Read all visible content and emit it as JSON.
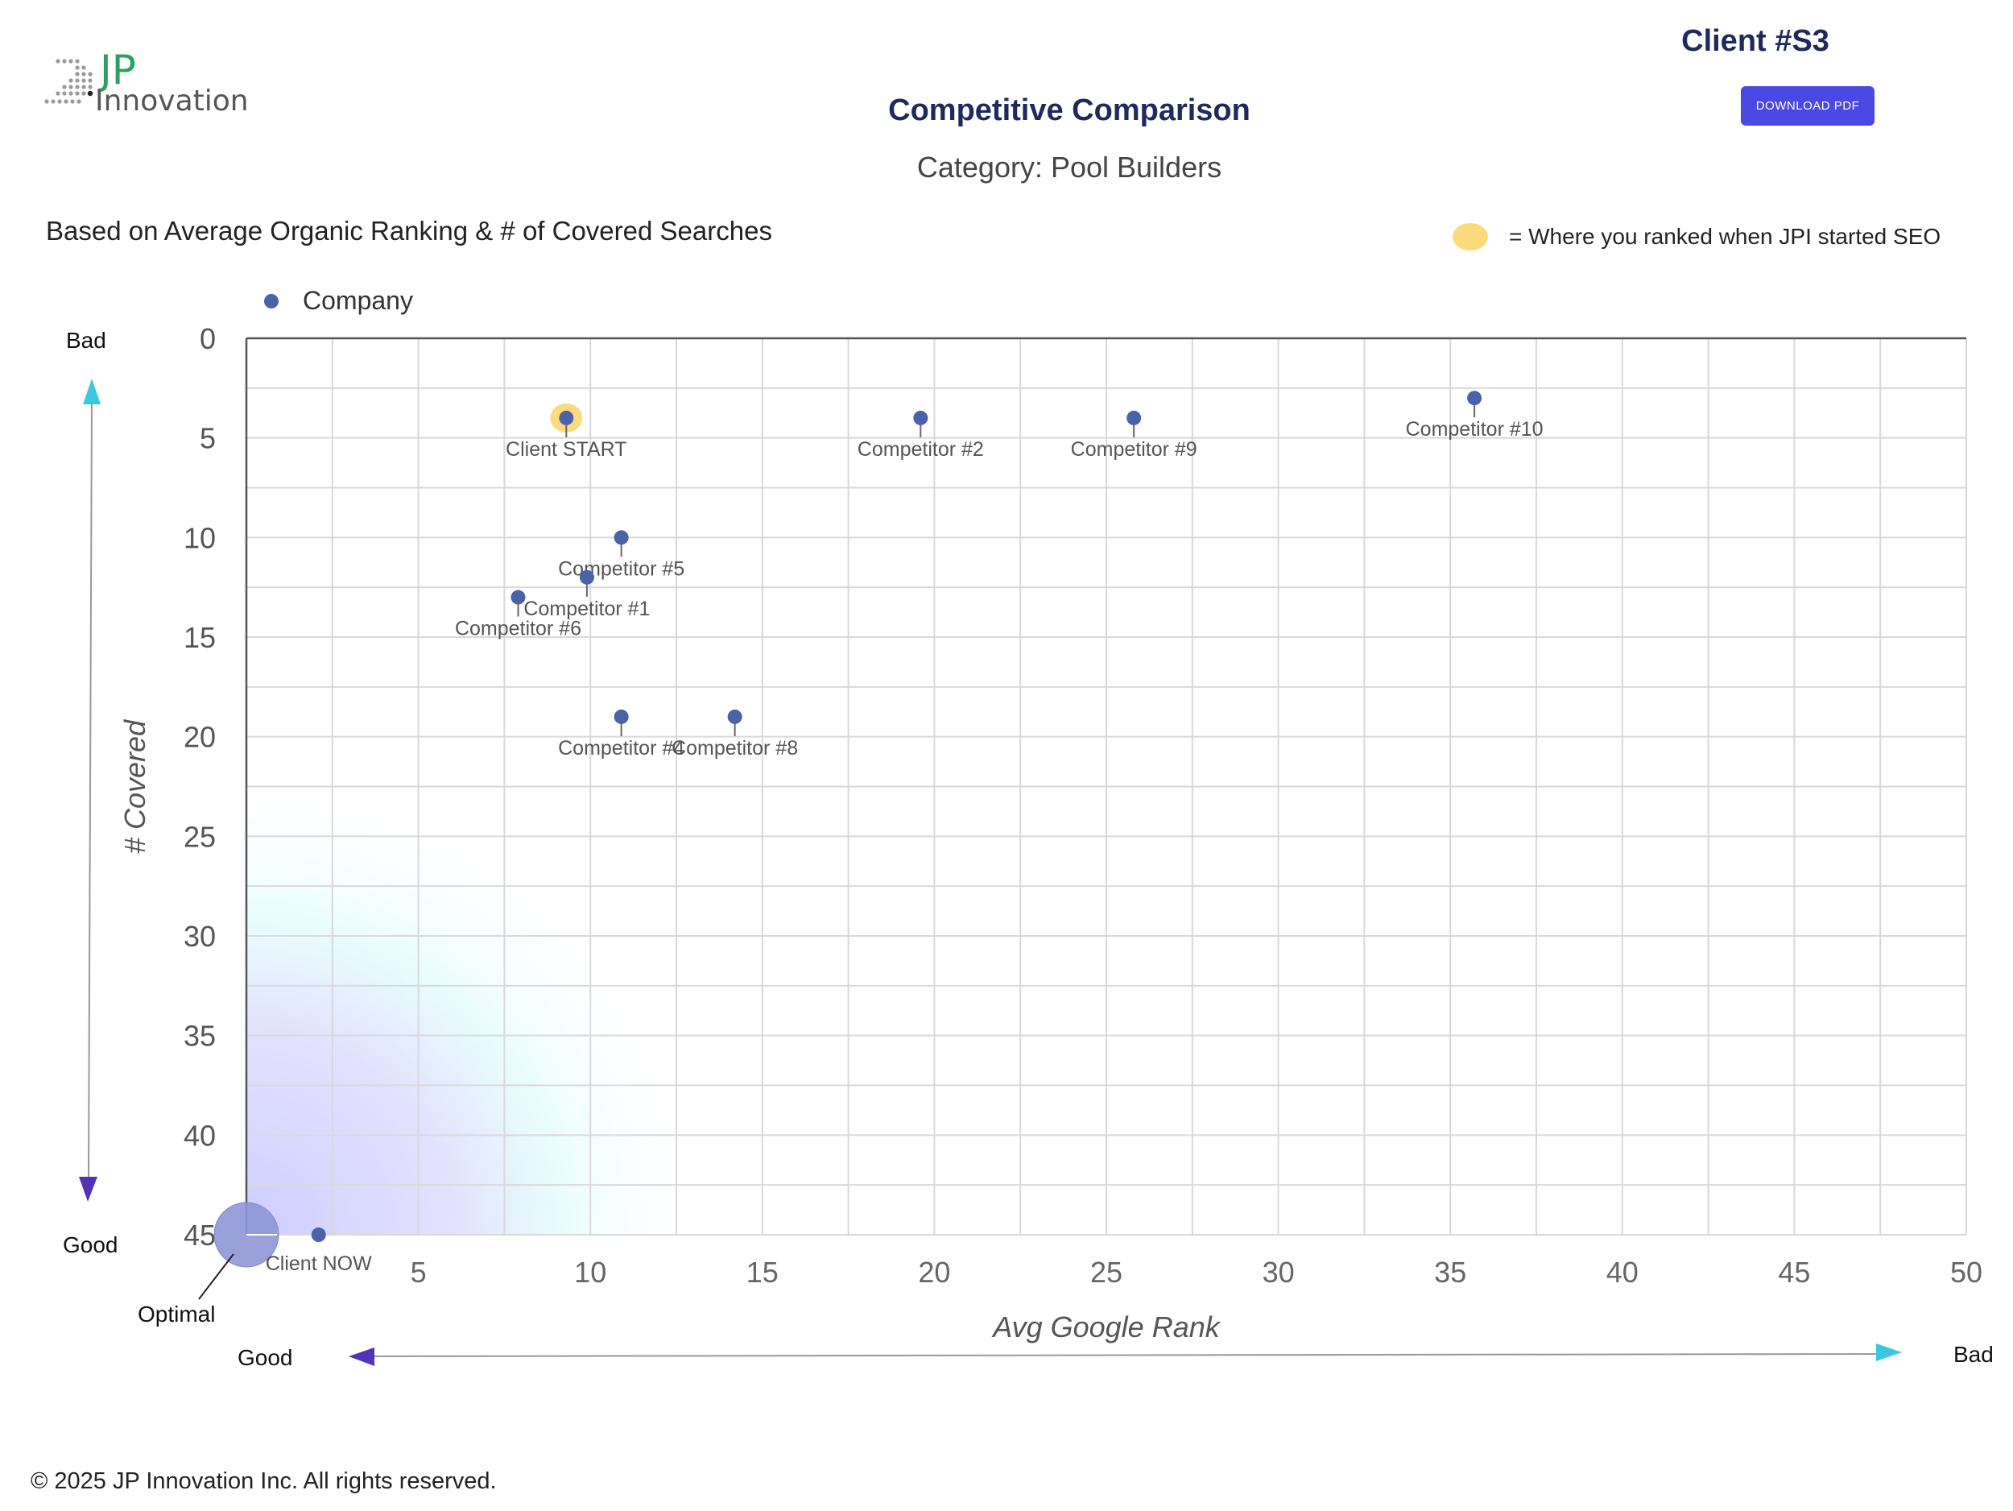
{
  "header": {
    "logo_jp": "JP",
    "logo_innovation": "Innovation",
    "client_id": "Client #S3",
    "download_label": "DOWNLOAD PDF",
    "title": "Competitive Comparison",
    "category": "Category: Pool Builders",
    "subtitle": "Based on Average Organic Ranking & # of Covered Searches",
    "start_legend_label": "= Where you ranked when JPI started SEO"
  },
  "axis_guides": {
    "y_top": "Bad",
    "y_bottom": "Good",
    "x_left": "Good",
    "x_right": "Bad",
    "optimal": "Optimal"
  },
  "footer": {
    "copyright": "© 2025 JP Innovation Inc.  All rights reserved."
  },
  "colors": {
    "point": "#4a62a8",
    "start_highlight": "#fbdb7c",
    "optimal_circle": "#8e96d6",
    "button": "#4a49e3",
    "title": "#1f2a5c",
    "arrow_cyan": "#3cc7e0",
    "arrow_purple": "#5132b8"
  },
  "chart_data": {
    "type": "scatter",
    "xlabel": "Avg Google Rank",
    "ylabel": "# Covered",
    "xlim": [
      0,
      50
    ],
    "ylim": [
      0,
      45
    ],
    "y_inverted": true,
    "x_ticks": [
      5,
      10,
      15,
      20,
      25,
      30,
      35,
      40,
      45,
      50
    ],
    "y_ticks": [
      0,
      5,
      10,
      15,
      20,
      25,
      30,
      35,
      40,
      45
    ],
    "grid": true,
    "legend": "top-left",
    "series": [
      {
        "name": "Company",
        "points": [
          {
            "label": "Client START",
            "x": 9.3,
            "y": 4,
            "highlight": true
          },
          {
            "label": "Competitor #2",
            "x": 19.6,
            "y": 4
          },
          {
            "label": "Competitor #9",
            "x": 25.8,
            "y": 4
          },
          {
            "label": "Competitor #10",
            "x": 35.7,
            "y": 3
          },
          {
            "label": "Competitor #5",
            "x": 10.9,
            "y": 10
          },
          {
            "label": "Competitor #1",
            "x": 9.9,
            "y": 12
          },
          {
            "label": "Competitor #6",
            "x": 7.9,
            "y": 13
          },
          {
            "label": "Competitor #4",
            "x": 10.9,
            "y": 19
          },
          {
            "label": "Competitor #8",
            "x": 14.2,
            "y": 19
          },
          {
            "label": "Client NOW",
            "x": 2.1,
            "y": 45
          }
        ]
      }
    ]
  }
}
